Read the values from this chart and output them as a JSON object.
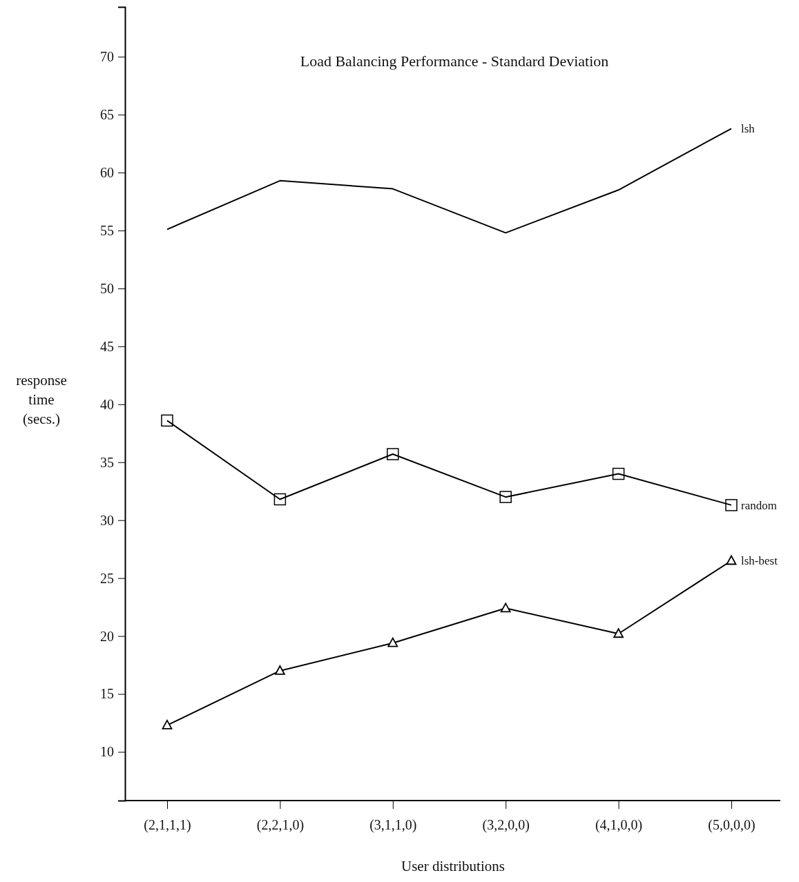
{
  "chart_data": {
    "type": "line",
    "title": "Load Balancing Performance - Standard Deviation",
    "xlabel": "User distributions",
    "ylabel": "response time (secs.)",
    "categories": [
      "(2,1,1,1)",
      "(2,2,1,0)",
      "(3,1,1,0)",
      "(3,2,0,0)",
      "(4,1,0,0)",
      "(5,0,0,0)"
    ],
    "series": [
      {
        "name": "lsh",
        "color": "#000000",
        "marker": "none",
        "values": [
          55.1,
          59.3,
          58.6,
          54.8,
          58.5,
          63.8
        ]
      },
      {
        "name": "random",
        "color": "#000000",
        "marker": "square",
        "values": [
          38.6,
          31.8,
          35.7,
          32.0,
          34.0,
          31.3
        ]
      },
      {
        "name": "lsh-best",
        "color": "#000000",
        "marker": "triangle",
        "values": [
          12.3,
          17.0,
          19.4,
          22.4,
          20.2,
          26.5
        ]
      }
    ],
    "ylim": [
      5.8,
      74.3
    ],
    "yticks": [
      10,
      15,
      20,
      25,
      30,
      35,
      40,
      45,
      50,
      55,
      60,
      65,
      70
    ],
    "grid": false,
    "legend": false
  }
}
